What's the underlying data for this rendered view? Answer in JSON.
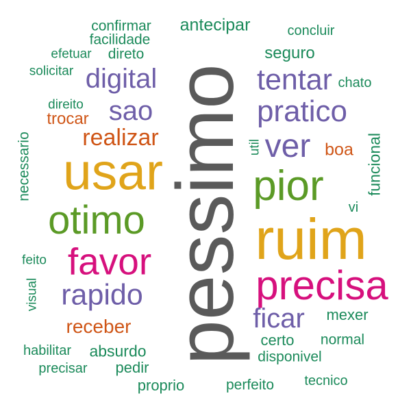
{
  "palette": {
    "green": "#1b8a5a",
    "purple": "#6e5ea8",
    "orange": "#cf5516",
    "gold": "#e0a41a",
    "lime": "#5b9a26",
    "pink": "#d6107d",
    "gray": "#5a5a5a"
  },
  "words": [
    {
      "text": "pessimo",
      "color": "gray",
      "orientation": "vertical"
    },
    {
      "text": "ruim",
      "color": "gold",
      "orientation": "horizontal"
    },
    {
      "text": "usar",
      "color": "gold",
      "orientation": "horizontal"
    },
    {
      "text": "precisa",
      "color": "pink",
      "orientation": "horizontal"
    },
    {
      "text": "favor",
      "color": "pink",
      "orientation": "horizontal"
    },
    {
      "text": "otimo",
      "color": "lime",
      "orientation": "horizontal"
    },
    {
      "text": "pior",
      "color": "lime",
      "orientation": "horizontal"
    },
    {
      "text": "pratico",
      "color": "purple",
      "orientation": "horizontal"
    },
    {
      "text": "rapido",
      "color": "purple",
      "orientation": "horizontal"
    },
    {
      "text": "digital",
      "color": "purple",
      "orientation": "horizontal"
    },
    {
      "text": "tentar",
      "color": "purple",
      "orientation": "horizontal"
    },
    {
      "text": "ver",
      "color": "purple",
      "orientation": "horizontal"
    },
    {
      "text": "ficar",
      "color": "purple",
      "orientation": "horizontal"
    },
    {
      "text": "sao",
      "color": "purple",
      "orientation": "horizontal"
    },
    {
      "text": "realizar",
      "color": "orange",
      "orientation": "horizontal"
    },
    {
      "text": "receber",
      "color": "orange",
      "orientation": "horizontal"
    },
    {
      "text": "trocar",
      "color": "orange",
      "orientation": "horizontal"
    },
    {
      "text": "boa",
      "color": "orange",
      "orientation": "horizontal"
    },
    {
      "text": "antecipar",
      "color": "green",
      "orientation": "horizontal"
    },
    {
      "text": "confirmar",
      "color": "green",
      "orientation": "horizontal"
    },
    {
      "text": "facilidade",
      "color": "green",
      "orientation": "horizontal"
    },
    {
      "text": "efetuar",
      "color": "green",
      "orientation": "horizontal"
    },
    {
      "text": "direto",
      "color": "green",
      "orientation": "horizontal"
    },
    {
      "text": "solicitar",
      "color": "green",
      "orientation": "horizontal"
    },
    {
      "text": "concluir",
      "color": "green",
      "orientation": "horizontal"
    },
    {
      "text": "seguro",
      "color": "green",
      "orientation": "horizontal"
    },
    {
      "text": "chato",
      "color": "green",
      "orientation": "horizontal"
    },
    {
      "text": "direito",
      "color": "green",
      "orientation": "horizontal"
    },
    {
      "text": "necessario",
      "color": "green",
      "orientation": "vertical"
    },
    {
      "text": "util",
      "color": "green",
      "orientation": "vertical"
    },
    {
      "text": "funcional",
      "color": "green",
      "orientation": "vertical"
    },
    {
      "text": "vi",
      "color": "green",
      "orientation": "horizontal"
    },
    {
      "text": "feito",
      "color": "green",
      "orientation": "horizontal"
    },
    {
      "text": "visual",
      "color": "green",
      "orientation": "vertical"
    },
    {
      "text": "mexer",
      "color": "green",
      "orientation": "horizontal"
    },
    {
      "text": "certo",
      "color": "green",
      "orientation": "horizontal"
    },
    {
      "text": "normal",
      "color": "green",
      "orientation": "horizontal"
    },
    {
      "text": "habilitar",
      "color": "green",
      "orientation": "horizontal"
    },
    {
      "text": "absurdo",
      "color": "green",
      "orientation": "horizontal"
    },
    {
      "text": "disponivel",
      "color": "green",
      "orientation": "horizontal"
    },
    {
      "text": "precisar",
      "color": "green",
      "orientation": "horizontal"
    },
    {
      "text": "pedir",
      "color": "green",
      "orientation": "horizontal"
    },
    {
      "text": "tecnico",
      "color": "green",
      "orientation": "horizontal"
    },
    {
      "text": "proprio",
      "color": "green",
      "orientation": "horizontal"
    },
    {
      "text": "perfeito",
      "color": "green",
      "orientation": "horizontal"
    }
  ]
}
